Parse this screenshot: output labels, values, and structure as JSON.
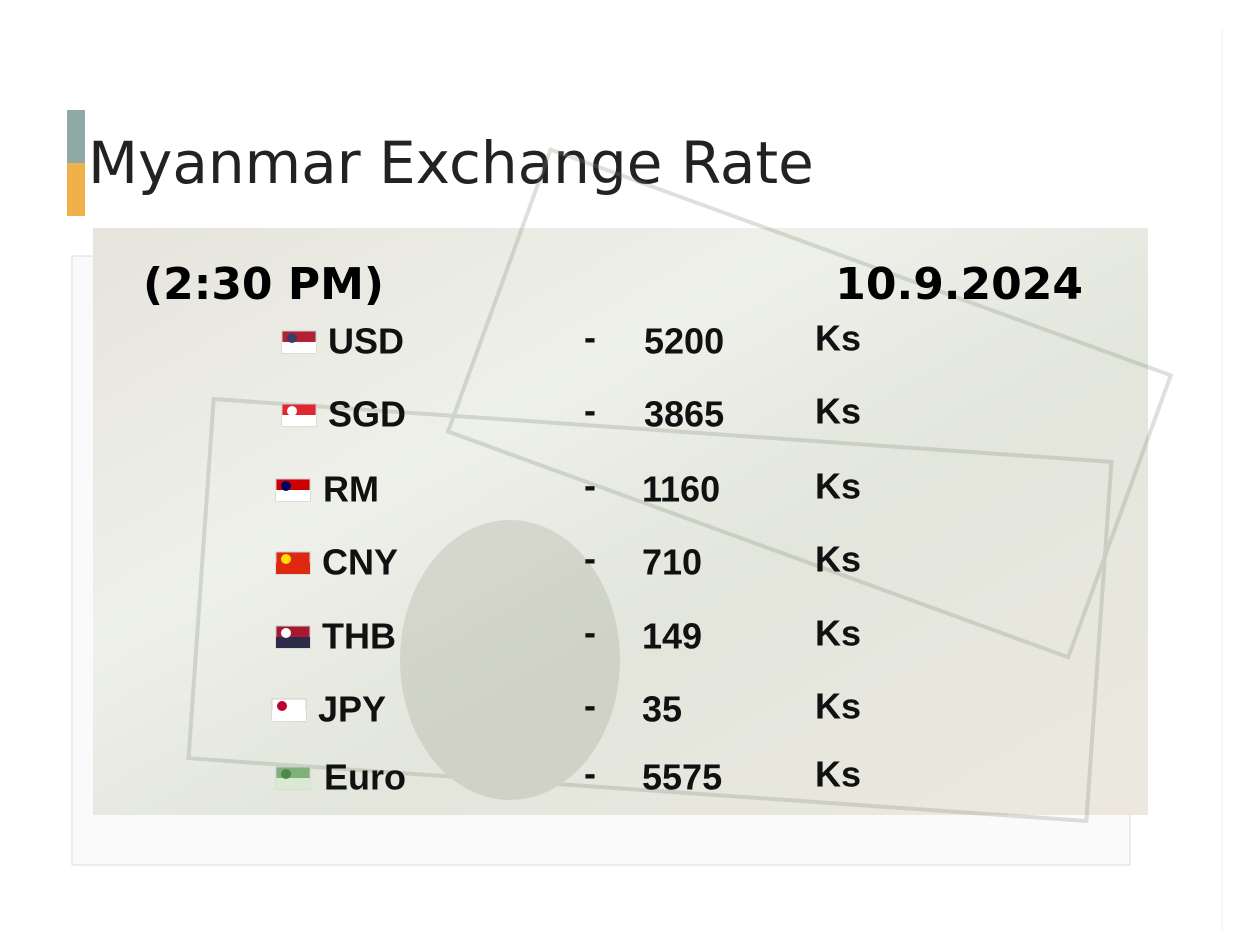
{
  "title": "Myanmar Exchange Rate",
  "time": "(2:30 PM)",
  "date": "10.9.2024",
  "separator": "-",
  "unit": "Ks",
  "rows": [
    {
      "currency": "USD",
      "rate": 5200
    },
    {
      "currency": "SGD",
      "rate": 3865
    },
    {
      "currency": "RM",
      "rate": 1160
    },
    {
      "currency": "CNY",
      "rate": 710
    },
    {
      "currency": "THB",
      "rate": 149
    },
    {
      "currency": "JPY",
      "rate": 35
    },
    {
      "currency": "Euro",
      "rate": 5575
    }
  ]
}
